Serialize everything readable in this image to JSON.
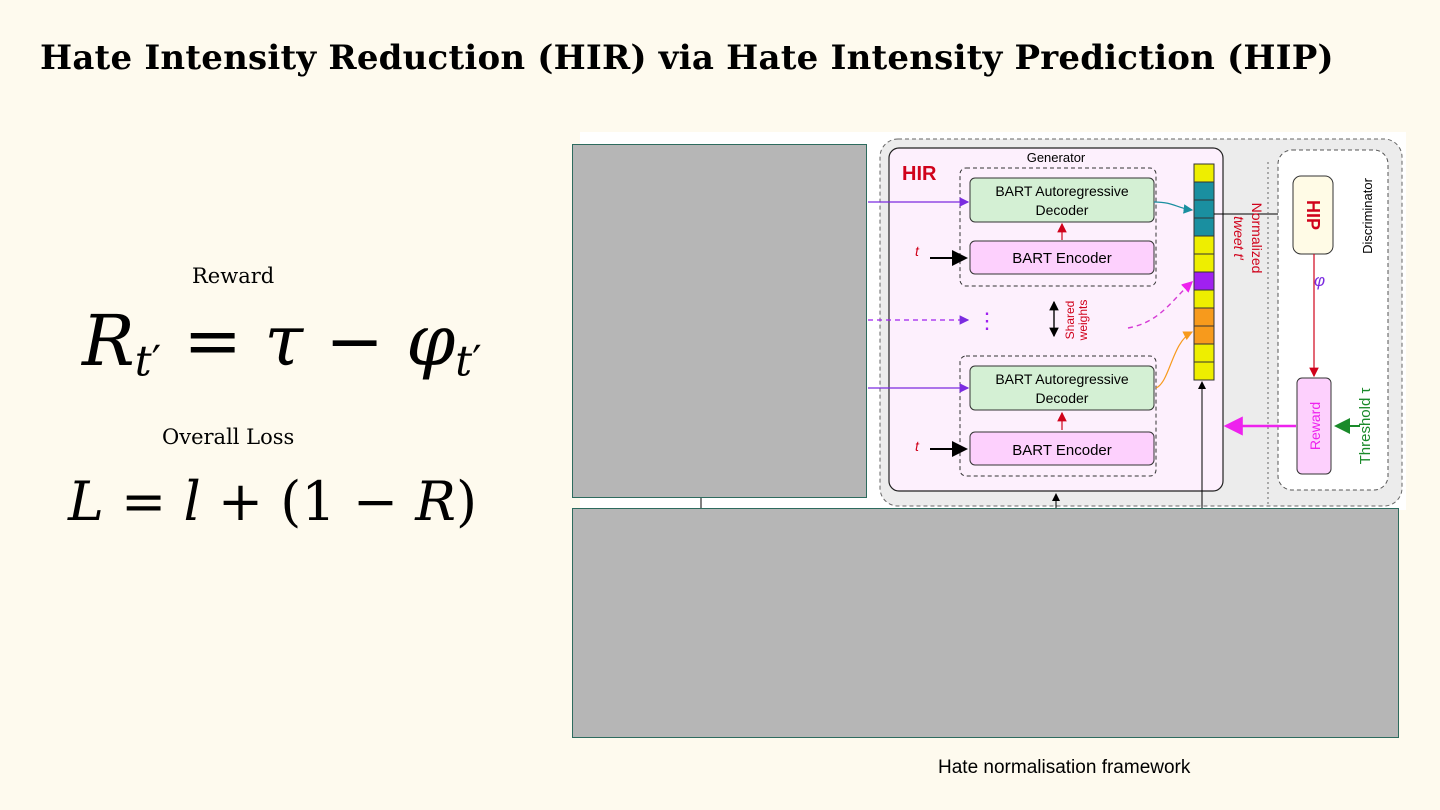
{
  "slide": {
    "title": "Hate Intensity Reduction (HIR) via Hate Intensity Prediction (HIP)",
    "reward_label": "Reward",
    "loss_label": "Overall Loss",
    "reward_equation": "R_{t′} = τ − φ_{t′}",
    "loss_equation": "L = l + (1 − R)",
    "caption": "Hate normalisation framework"
  },
  "figure": {
    "generator_label": "Generator",
    "hir_label": "HIR",
    "decoder_label_line1": "BART Autoregressive",
    "decoder_label_line2": "Decoder",
    "encoder_label": "BART Encoder",
    "input_symbol": "t",
    "shared_weights_line1": "Shared",
    "shared_weights_line2": "weights",
    "ellipsis": "⋮",
    "normalized_line1": "Normalized",
    "normalized_line2": "tweet  t′",
    "hip_label": "HIP",
    "phi_symbol": "φ",
    "discriminator_label": "Discriminator",
    "reward_box_label": "Reward",
    "threshold_label": "Threshold τ"
  },
  "colors": {
    "background": "#fefaee",
    "hir_red": "#d0021b",
    "decoder_green": "#d4f0d4",
    "encoder_pink": "#fdd0fd",
    "hir_bg": "#fdf0fd",
    "teal_cell": "#1a8fa0",
    "yellow_cell": "#eeee00",
    "purple_cell": "#a020f0",
    "orange_cell": "#f79a1c",
    "magenta_arrow": "#ee22ee",
    "threshold_green": "#1a8a2a"
  }
}
